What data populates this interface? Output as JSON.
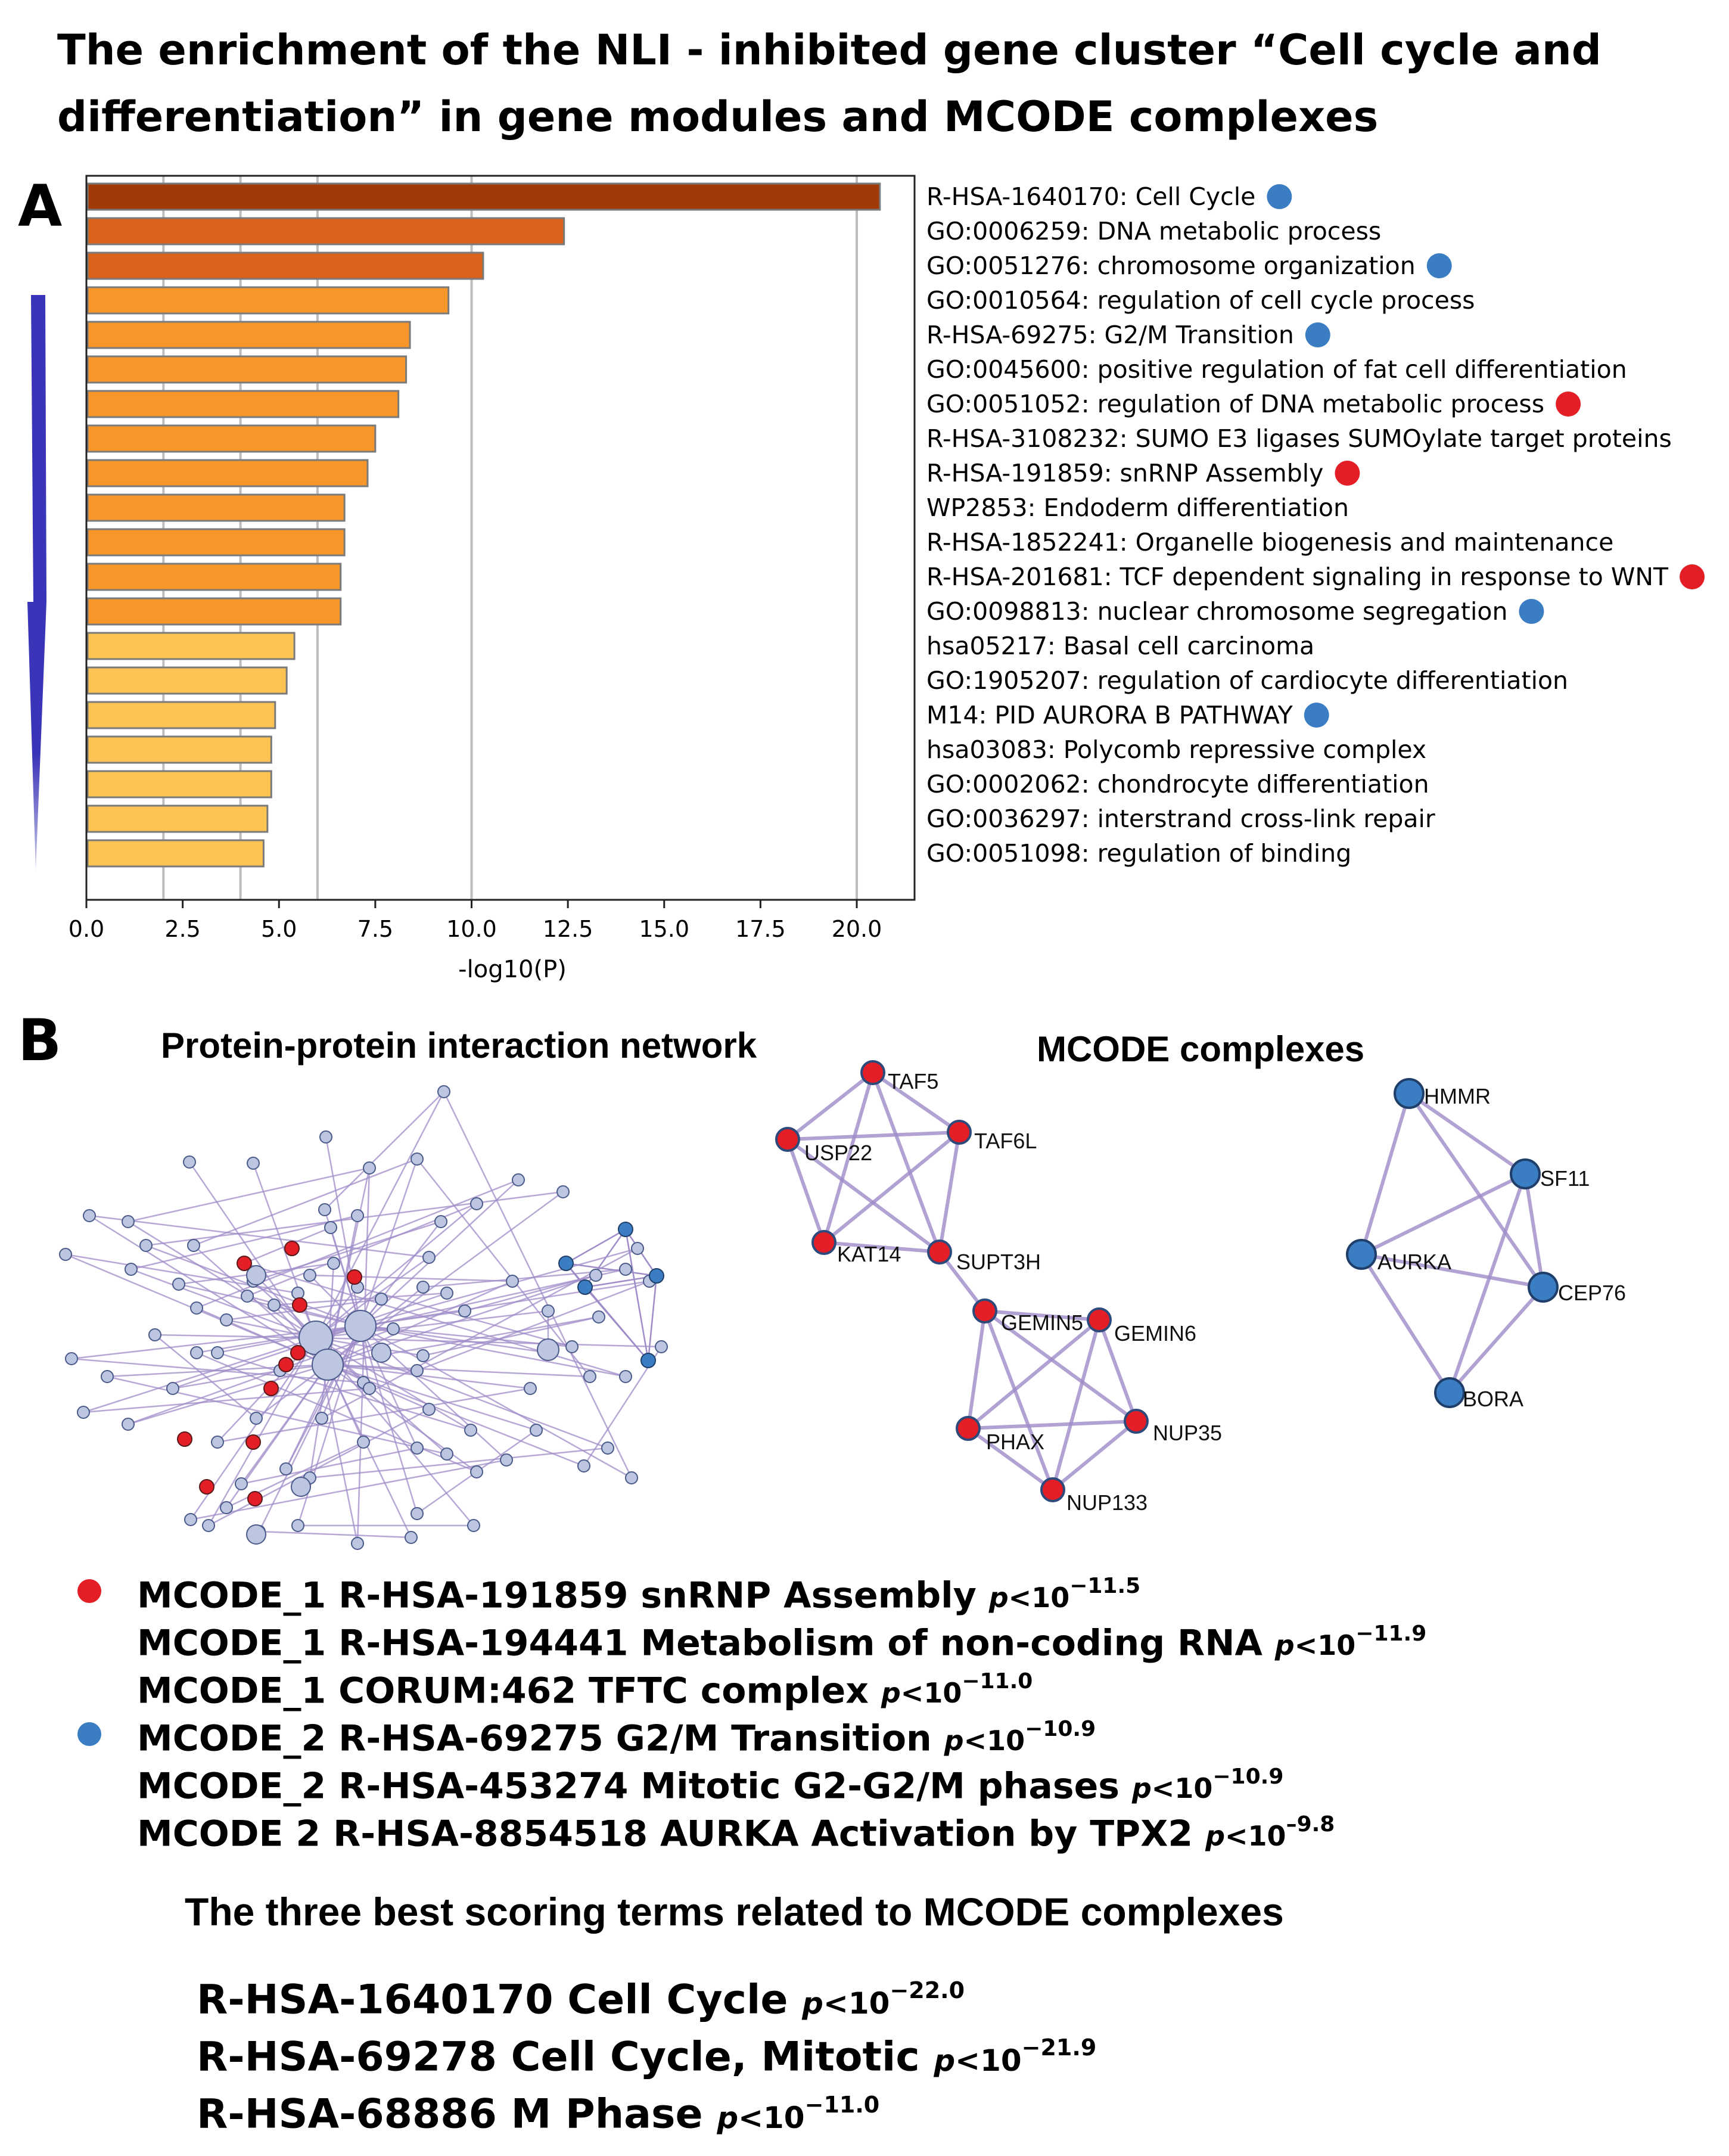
{
  "title": {
    "line1": "The enrichment of the NLI - inhibited  gene cluster “Cell cycle and",
    "line2": "differentiation” in gene  modules and  MCODE complexes"
  },
  "panel_a_letter": "A",
  "panel_b_letter": "B",
  "colors": {
    "bar_darkest": "#A13A08",
    "bar_dark": "#D9631A",
    "bar_mid": "#F7962B",
    "bar_light": "#FDC454",
    "dot_red": "#E41E26",
    "dot_blue": "#3A7DC2",
    "edge": "#9F8CC9",
    "node_light": "#BCC6E0",
    "arrow": "#3A34B8"
  },
  "chart_data": {
    "type": "bar",
    "orientation": "horizontal",
    "xlabel": "-log10(P)",
    "xlim": [
      0,
      21.5
    ],
    "xticks": [
      "0.0",
      "2.5",
      "5.0",
      "7.5",
      "10.0",
      "12.5",
      "15.0",
      "17.5",
      "20.0"
    ],
    "vertical_gridlines": [
      2,
      4,
      6,
      10,
      20
    ],
    "categories": [
      "R-HSA-1640170: Cell Cycle",
      "GO:0006259: DNA metabolic process",
      "GO:0051276: chromosome organization",
      "GO:0010564: regulation of cell cycle process",
      "R-HSA-69275: G2/M Transition",
      "GO:0045600: positive regulation of fat cell differentiation",
      "GO:0051052: regulation of DNA metabolic process",
      "R-HSA-3108232: SUMO E3 ligases SUMOylate target proteins",
      "R-HSA-191859: snRNP Assembly",
      "WP2853: Endoderm differentiation",
      "R-HSA-1852241: Organelle biogenesis and maintenance",
      "R-HSA-201681: TCF dependent signaling in response to WNT",
      "GO:0098813: nuclear chromosome segregation",
      "hsa05217: Basal cell carcinoma",
      "GO:1905207: regulation of cardiocyte differentiation",
      "M14: PID AURORA B PATHWAY",
      "hsa03083: Polycomb repressive complex",
      "GO:0002062: chondrocyte differentiation",
      "GO:0036297: interstrand cross-link repair",
      "GO:0051098: regulation of binding"
    ],
    "values": [
      20.6,
      12.4,
      10.3,
      9.4,
      8.4,
      8.3,
      8.1,
      7.5,
      7.3,
      6.7,
      6.7,
      6.6,
      6.6,
      5.4,
      5.2,
      4.9,
      4.8,
      4.8,
      4.7,
      4.6
    ],
    "markers": [
      "blue",
      "",
      "blue",
      "",
      "blue",
      "",
      "red",
      "",
      "red",
      "",
      "",
      "red",
      "blue",
      "",
      "",
      "blue",
      "",
      "",
      "",
      ""
    ]
  },
  "network": {
    "ppi_title": "Protein-protein interaction network",
    "mcode_title": "MCODE  complexes",
    "complex1_nodes": [
      "TAF5",
      "USP22",
      "TAF6L",
      "KAT14",
      "SUPT3H",
      "GEMIN5",
      "GEMIN6",
      "PHAX",
      "NUP35",
      "NUP133"
    ],
    "complex2_nodes": [
      "HMMR",
      "SF11",
      "AURKA",
      "CEP76",
      "BORA"
    ]
  },
  "mcode_terms": [
    {
      "dot": "red",
      "text": "MCODE_1  R-HSA-191859  snRNP Assembly",
      "p": "10",
      "exp": "−11.5"
    },
    {
      "dot": "",
      "text": "MCODE_1  R-HSA-194441  Metabolism of non-coding RNA",
      "p": "10",
      "exp": "−11.9"
    },
    {
      "dot": "",
      "text": "MCODE_1  CORUM:462  TFTC complex",
      "p": "10",
      "exp": "−11.0"
    },
    {
      "dot": "blue",
      "text": "MCODE_2  R-HSA-69275  G2/M Transition",
      "p": "10",
      "exp": "−10.9"
    },
    {
      "dot": "",
      "text": "MCODE_2  R-HSA-453274  Mitotic G2-G2/M phases",
      "p": "10",
      "exp": "−10.9"
    },
    {
      "dot": "",
      "text": "MCODE  2  R-HSA-8854518 AURKA Activation by TPX2",
      "p": "10",
      "exp": "–9.8"
    }
  ],
  "best_heading": "The three best scoring terms related to MCODE complexes",
  "best_terms": [
    {
      "text": "R-HSA-1640170 Cell Cycle",
      "p": "10",
      "exp": "−22.0"
    },
    {
      "text": "R-HSA-69278  Cell Cycle, Mitotic",
      "p": "10",
      "exp": "−21.9"
    },
    {
      "text": "R-HSA-68886  M Phase",
      "p": "10",
      "exp": "−11.0"
    }
  ],
  "pval_prefix": "p<"
}
